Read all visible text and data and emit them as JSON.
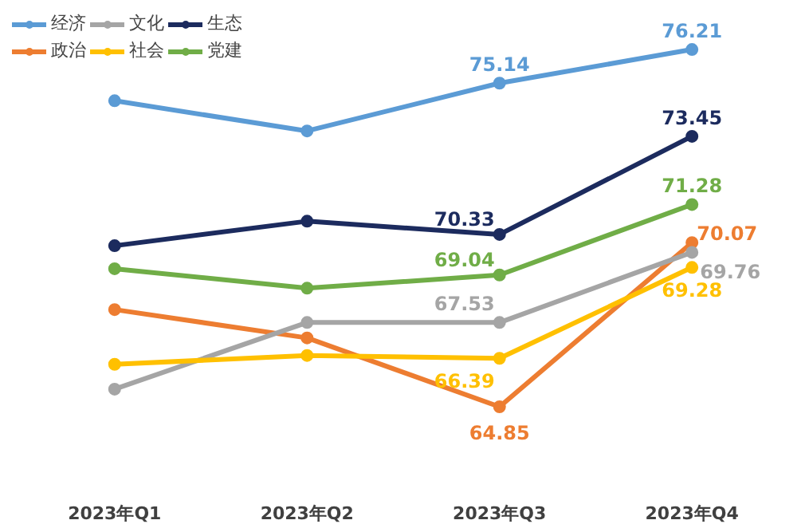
{
  "chart_data": {
    "type": "line",
    "categories": [
      "2023年Q1",
      "2023年Q2",
      "2023年Q3",
      "2023年Q4"
    ],
    "tick_labels": "x",
    "grid": false,
    "legend": "top left",
    "marker": "circle",
    "line_style": "solid",
    "series": [
      {
        "name": "经济",
        "color": "#5b9bd5",
        "values": [
          74.58,
          73.62,
          75.14,
          76.21
        ],
        "value_labels": [
          null,
          null,
          "75.14",
          "76.21"
        ]
      },
      {
        "name": "政治",
        "color": "#ed7d31",
        "values": [
          67.94,
          67.04,
          64.85,
          70.07
        ],
        "value_labels": [
          null,
          null,
          "64.85",
          "70.07"
        ]
      },
      {
        "name": "文化",
        "color": "#a5a5a5",
        "values": [
          65.41,
          67.53,
          67.53,
          69.76
        ],
        "value_labels": [
          null,
          null,
          "67.53",
          "69.76"
        ]
      },
      {
        "name": "社会",
        "color": "#ffc000",
        "values": [
          66.2,
          66.48,
          66.39,
          69.28
        ],
        "value_labels": [
          null,
          null,
          "66.39",
          "69.28"
        ]
      },
      {
        "name": "生态",
        "color": "#1c2b5e",
        "values": [
          69.97,
          70.75,
          70.33,
          73.45
        ],
        "value_labels": [
          null,
          null,
          "70.33",
          "73.45"
        ]
      },
      {
        "name": "党建",
        "color": "#70ad47",
        "values": [
          69.24,
          68.62,
          69.04,
          71.28
        ],
        "value_labels": [
          null,
          null,
          "69.04",
          "71.28"
        ]
      }
    ]
  }
}
